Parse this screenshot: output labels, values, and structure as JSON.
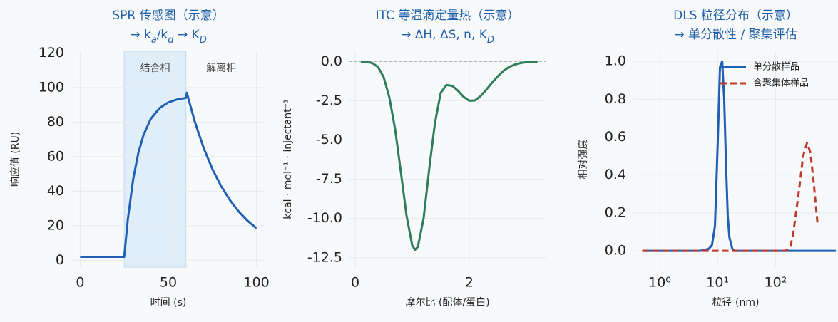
{
  "chart_data": [
    {
      "type": "line",
      "title": "SPR 传感图（示意）",
      "subtitle": [
        {
          "text": "→ k"
        },
        {
          "text": "a",
          "sub": true
        },
        {
          "text": "/k"
        },
        {
          "text": "d",
          "sub": true
        },
        {
          "text": " → K"
        },
        {
          "text": "D",
          "sub": true
        }
      ],
      "xlabel": "时间 (s)",
      "ylabel": "响应值 (RU)",
      "x": [
        0,
        5,
        10,
        15,
        20,
        25,
        27,
        30,
        33,
        36,
        40,
        45,
        50,
        55,
        60,
        60.5,
        61,
        65,
        70,
        75,
        80,
        85,
        90,
        95,
        100
      ],
      "series": [
        {
          "color": "#1f5fb4",
          "linestyle": "solid",
          "values": [
            2,
            2,
            2,
            2,
            2,
            2,
            23.3,
            46.5,
            62.1,
            72.7,
            81.8,
            88.1,
            91.4,
            93.1,
            94.0,
            97,
            95,
            80.3,
            65.1,
            52.8,
            42.8,
            34.7,
            28.1,
            22.8,
            18.5
          ]
        }
      ],
      "spans": [
        {
          "label": "结合相",
          "start": 25,
          "end": 60,
          "shaded": true
        },
        {
          "label": "解离相",
          "start": 60,
          "end": 100,
          "shaded": false
        }
      ],
      "xlim": [
        -5,
        105
      ],
      "ylim": [
        -4,
        121
      ],
      "xticks": [
        0,
        50,
        100
      ],
      "yticks": [
        0,
        20,
        40,
        60,
        80,
        100,
        120
      ],
      "grid": true
    },
    {
      "type": "line",
      "title": "ITC 等温滴定量热（示意）",
      "subtitle": [
        {
          "text": "→ ΔH, ΔS, n, K"
        },
        {
          "text": "D",
          "sub": true
        }
      ],
      "xlabel": "摩尔比 (配体/蛋白)",
      "ylabel": "kcal · mol⁻¹ · injectant⁻¹",
      "x": [
        0.1,
        0.2,
        0.3,
        0.4,
        0.5,
        0.6,
        0.7,
        0.8,
        0.9,
        1.0,
        1.05,
        1.1,
        1.2,
        1.3,
        1.4,
        1.5,
        1.6,
        1.7,
        1.8,
        1.9,
        2.0,
        2.1,
        2.2,
        2.3,
        2.4,
        2.5,
        2.6,
        2.7,
        2.8,
        2.9,
        3.0,
        3.1,
        3.2
      ],
      "series": [
        {
          "color": "#2e7d57",
          "linestyle": "solid",
          "values": [
            0,
            -0.02,
            -0.1,
            -0.35,
            -1.0,
            -2.3,
            -4.3,
            -7.0,
            -9.8,
            -11.7,
            -12.0,
            -11.8,
            -10.0,
            -6.8,
            -3.9,
            -2.0,
            -1.5,
            -1.55,
            -1.85,
            -2.25,
            -2.5,
            -2.48,
            -2.2,
            -1.8,
            -1.35,
            -0.95,
            -0.6,
            -0.35,
            -0.2,
            -0.1,
            -0.05,
            -0.02,
            0
          ]
        }
      ],
      "hline": 0,
      "xlim": [
        -0.1,
        3.34
      ],
      "ylim": [
        -13.1,
        0.65
      ],
      "xticks": [
        0,
        2
      ],
      "yticks": [
        {
          "value": 0,
          "label": "0.0"
        },
        -2.5,
        {
          "value": -5,
          "label": "-5.0"
        },
        -7.5,
        {
          "value": -10,
          "label": "-10.0"
        },
        -12.5
      ],
      "grid": true
    },
    {
      "type": "line",
      "title": "DLS 粒径分布（示意）",
      "subtitle": [
        {
          "text": "→ 单分散性 / 聚集评估"
        }
      ],
      "xlabel": "粒径 (nm)",
      "ylabel": "相对强度",
      "xscale": "log",
      "x": [
        0.5,
        1,
        2,
        5,
        7,
        8,
        9,
        10,
        11,
        12,
        13,
        14,
        15,
        16,
        18,
        20,
        50,
        100,
        150,
        180,
        200,
        250,
        300,
        350,
        400,
        450,
        530,
        1100
      ],
      "series": [
        {
          "name": "单分散样品",
          "color": "#1f5fb4",
          "linestyle": "solid",
          "values": [
            0,
            0,
            0,
            0,
            0.01,
            0.03,
            0.13,
            0.55,
            0.97,
            1.0,
            0.8,
            0.45,
            0.18,
            0.07,
            0.01,
            0,
            0,
            0,
            0,
            0,
            0,
            0,
            0,
            0,
            0,
            0,
            0,
            0
          ]
        },
        {
          "name": "含聚集体样品",
          "color": "#c0392b",
          "linestyle": "dashed",
          "values": [
            0,
            0,
            0,
            0,
            0,
            0,
            0,
            0,
            0,
            0,
            0,
            0,
            0,
            0,
            0,
            0,
            0,
            0,
            0,
            0.02,
            0.08,
            0.3,
            0.5,
            0.57,
            0.52,
            0.38,
            0.15,
            null
          ]
        }
      ],
      "legend": "upper right",
      "xlim": [
        0.35,
        1200
      ],
      "ylim": [
        -0.086,
        1.053
      ],
      "xticks": [
        {
          "value": 1,
          "label": "10⁰"
        },
        {
          "value": 10,
          "label": "10¹"
        },
        {
          "value": 100,
          "label": "10²"
        }
      ],
      "yticks": [
        {
          "value": 0,
          "label": "0.0"
        },
        0.2,
        0.4,
        0.6,
        0.8,
        {
          "value": 1,
          "label": "1.0"
        }
      ],
      "grid": true
    }
  ]
}
